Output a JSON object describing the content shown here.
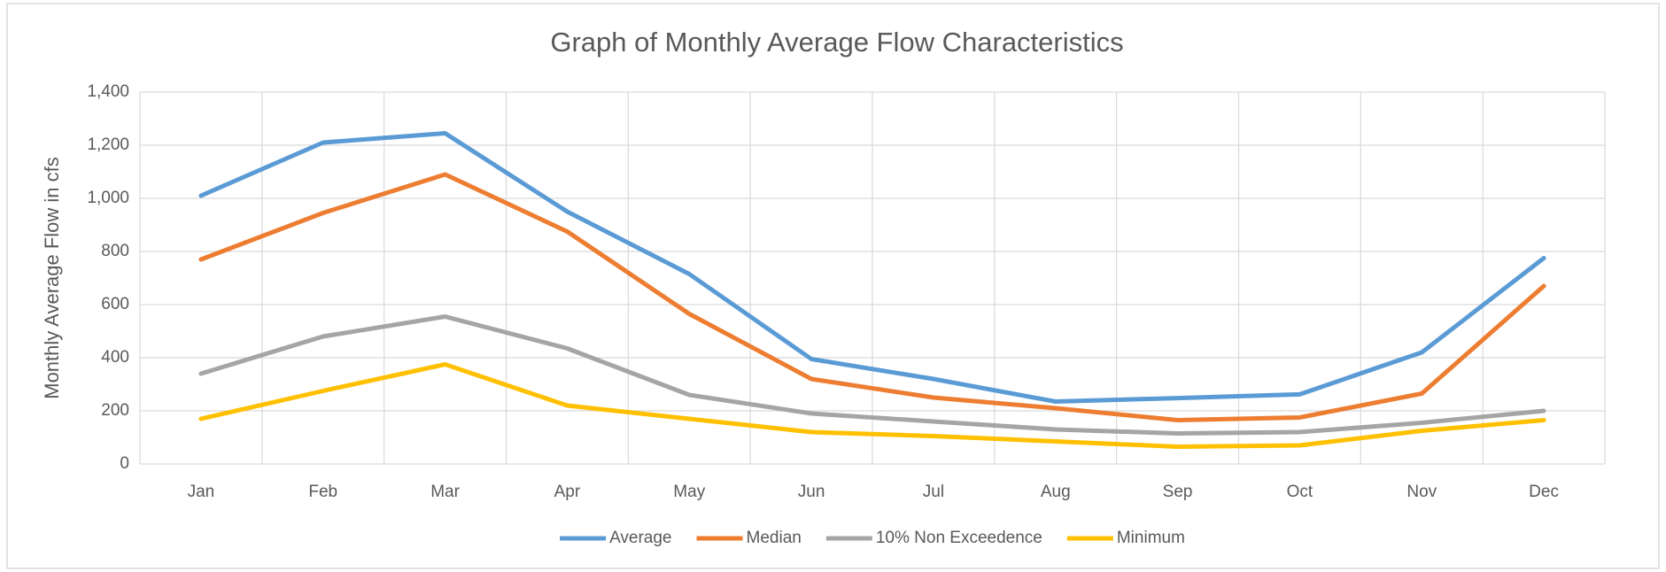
{
  "chart_data": {
    "type": "line",
    "title": "Graph of Monthly Average Flow Characteristics",
    "y_label": "Monthly Average Flow in cfs",
    "categories": [
      "Jan",
      "Feb",
      "Mar",
      "Apr",
      "May",
      "Jun",
      "Jul",
      "Aug",
      "Sep",
      "Oct",
      "Nov",
      "Dec"
    ],
    "series": [
      {
        "name": "Average",
        "color": "#5b9bd5",
        "values": [
          1010,
          1210,
          1245,
          950,
          715,
          395,
          320,
          235,
          248,
          262,
          420,
          775
        ]
      },
      {
        "name": "Median",
        "color": "#ed7d31",
        "values": [
          770,
          945,
          1090,
          875,
          565,
          320,
          250,
          210,
          165,
          175,
          265,
          670
        ]
      },
      {
        "name": "10% Non Exceedence",
        "color": "#a5a5a5",
        "values": [
          340,
          480,
          555,
          435,
          260,
          190,
          160,
          130,
          115,
          120,
          155,
          200
        ]
      },
      {
        "name": "Minimum",
        "color": "#ffc000",
        "values": [
          170,
          275,
          375,
          220,
          170,
          120,
          105,
          85,
          65,
          70,
          125,
          165
        ]
      }
    ],
    "ylim": [
      0,
      1400
    ],
    "yticks": [
      0,
      200,
      400,
      600,
      800,
      {
        "value": 1000,
        "label": "1,000"
      },
      {
        "value": 1200,
        "label": "1,200"
      },
      {
        "value": 1400,
        "label": "1,400"
      }
    ],
    "grid": true,
    "legend": "bottom"
  }
}
